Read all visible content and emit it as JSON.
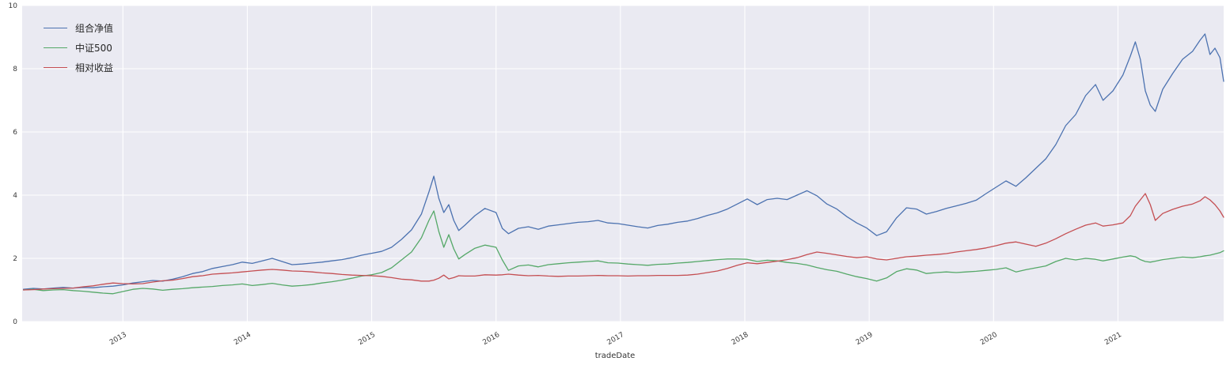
{
  "figure": {
    "background": "#ffffff",
    "plot_background": "#eaeaf2",
    "grid_color": "#ffffff",
    "tick_color": "#3b3b3b"
  },
  "chart_data": {
    "type": "line",
    "title": "",
    "xlabel": "tradeDate",
    "ylabel": "",
    "grid": true,
    "legend_position": "upper-left",
    "xlim": [
      2012.19,
      2021.85
    ],
    "ylim": [
      0,
      10
    ],
    "x_ticks": [
      "2013",
      "2014",
      "2015",
      "2016",
      "2017",
      "2018",
      "2019",
      "2020",
      "2021"
    ],
    "x_tick_values": [
      2013,
      2014,
      2015,
      2016,
      2017,
      2018,
      2019,
      2020,
      2021
    ],
    "y_ticks": [
      0,
      2,
      4,
      6,
      8,
      10
    ],
    "x": [
      2012.2,
      2012.28,
      2012.36,
      2012.44,
      2012.52,
      2012.6,
      2012.68,
      2012.76,
      2012.84,
      2012.92,
      2013.0,
      2013.08,
      2013.16,
      2013.24,
      2013.32,
      2013.4,
      2013.48,
      2013.56,
      2013.64,
      2013.72,
      2013.8,
      2013.88,
      2013.96,
      2014.04,
      2014.12,
      2014.2,
      2014.28,
      2014.36,
      2014.44,
      2014.52,
      2014.6,
      2014.68,
      2014.76,
      2014.84,
      2014.92,
      2015.0,
      2015.08,
      2015.16,
      2015.24,
      2015.32,
      2015.4,
      2015.46,
      2015.5,
      2015.54,
      2015.58,
      2015.62,
      2015.66,
      2015.7,
      2015.75,
      2015.83,
      2015.91,
      2016.0,
      2016.05,
      2016.1,
      2016.18,
      2016.26,
      2016.34,
      2016.42,
      2016.5,
      2016.58,
      2016.66,
      2016.74,
      2016.82,
      2016.9,
      2016.98,
      2017.06,
      2017.14,
      2017.22,
      2017.3,
      2017.38,
      2017.46,
      2017.54,
      2017.62,
      2017.7,
      2017.78,
      2017.86,
      2017.94,
      2018.02,
      2018.1,
      2018.18,
      2018.26,
      2018.34,
      2018.42,
      2018.5,
      2018.58,
      2018.66,
      2018.74,
      2018.82,
      2018.9,
      2018.98,
      2019.06,
      2019.14,
      2019.22,
      2019.3,
      2019.38,
      2019.46,
      2019.54,
      2019.62,
      2019.7,
      2019.78,
      2019.86,
      2019.94,
      2020.02,
      2020.1,
      2020.18,
      2020.26,
      2020.34,
      2020.42,
      2020.5,
      2020.58,
      2020.66,
      2020.74,
      2020.82,
      2020.88,
      2020.96,
      2021.04,
      2021.1,
      2021.14,
      2021.18,
      2021.22,
      2021.26,
      2021.3,
      2021.36,
      2021.44,
      2021.52,
      2021.6,
      2021.66,
      2021.7,
      2021.74,
      2021.78,
      2021.82,
      2021.85
    ],
    "series": [
      {
        "name": "组合净值",
        "color": "#4c72b0",
        "values": [
          1.02,
          1.05,
          1.03,
          1.06,
          1.08,
          1.06,
          1.08,
          1.07,
          1.1,
          1.12,
          1.16,
          1.22,
          1.26,
          1.3,
          1.28,
          1.34,
          1.42,
          1.52,
          1.58,
          1.68,
          1.74,
          1.8,
          1.88,
          1.84,
          1.92,
          2.0,
          1.9,
          1.8,
          1.82,
          1.85,
          1.88,
          1.92,
          1.96,
          2.02,
          2.1,
          2.16,
          2.22,
          2.35,
          2.6,
          2.9,
          3.4,
          4.1,
          4.6,
          3.9,
          3.45,
          3.7,
          3.2,
          2.88,
          3.05,
          3.35,
          3.58,
          3.45,
          2.95,
          2.78,
          2.95,
          3.0,
          2.92,
          3.02,
          3.06,
          3.1,
          3.14,
          3.16,
          3.2,
          3.12,
          3.1,
          3.05,
          3.0,
          2.96,
          3.04,
          3.08,
          3.14,
          3.18,
          3.26,
          3.36,
          3.44,
          3.56,
          3.72,
          3.88,
          3.7,
          3.86,
          3.9,
          3.86,
          4.0,
          4.14,
          3.98,
          3.72,
          3.56,
          3.32,
          3.12,
          2.96,
          2.72,
          2.84,
          3.28,
          3.6,
          3.56,
          3.4,
          3.48,
          3.58,
          3.66,
          3.74,
          3.84,
          4.05,
          4.25,
          4.45,
          4.28,
          4.55,
          4.85,
          5.15,
          5.6,
          6.2,
          6.55,
          7.15,
          7.5,
          7.0,
          7.3,
          7.8,
          8.4,
          8.85,
          8.3,
          7.3,
          6.85,
          6.65,
          7.35,
          7.85,
          8.3,
          8.55,
          8.9,
          9.1,
          8.45,
          8.65,
          8.35,
          7.6
        ]
      },
      {
        "name": "中证500",
        "color": "#55a868",
        "values": [
          1.0,
          1.02,
          0.98,
          1.0,
          1.01,
          0.98,
          0.96,
          0.93,
          0.9,
          0.88,
          0.95,
          1.02,
          1.05,
          1.03,
          0.99,
          1.02,
          1.04,
          1.07,
          1.09,
          1.11,
          1.14,
          1.16,
          1.19,
          1.14,
          1.17,
          1.21,
          1.16,
          1.12,
          1.14,
          1.17,
          1.22,
          1.26,
          1.31,
          1.37,
          1.44,
          1.48,
          1.55,
          1.7,
          1.95,
          2.2,
          2.65,
          3.2,
          3.5,
          2.85,
          2.35,
          2.75,
          2.3,
          1.98,
          2.12,
          2.32,
          2.42,
          2.35,
          1.95,
          1.62,
          1.76,
          1.79,
          1.73,
          1.8,
          1.83,
          1.86,
          1.88,
          1.9,
          1.92,
          1.86,
          1.85,
          1.82,
          1.8,
          1.78,
          1.81,
          1.82,
          1.85,
          1.87,
          1.9,
          1.93,
          1.96,
          1.98,
          1.98,
          1.97,
          1.9,
          1.94,
          1.92,
          1.87,
          1.84,
          1.79,
          1.71,
          1.64,
          1.59,
          1.5,
          1.42,
          1.36,
          1.28,
          1.38,
          1.58,
          1.67,
          1.63,
          1.52,
          1.55,
          1.57,
          1.55,
          1.57,
          1.59,
          1.62,
          1.65,
          1.7,
          1.57,
          1.64,
          1.7,
          1.76,
          1.9,
          2.0,
          1.95,
          2.0,
          1.97,
          1.92,
          1.98,
          2.04,
          2.08,
          2.05,
          1.96,
          1.9,
          1.88,
          1.91,
          1.96,
          2.0,
          2.04,
          2.02,
          2.05,
          2.08,
          2.1,
          2.14,
          2.18,
          2.24
        ]
      },
      {
        "name": "相对收益",
        "color": "#c44e52",
        "values": [
          1.0,
          1.01,
          1.03,
          1.04,
          1.05,
          1.06,
          1.1,
          1.13,
          1.18,
          1.22,
          1.2,
          1.19,
          1.2,
          1.25,
          1.29,
          1.31,
          1.36,
          1.42,
          1.45,
          1.5,
          1.52,
          1.54,
          1.57,
          1.6,
          1.63,
          1.65,
          1.63,
          1.6,
          1.59,
          1.57,
          1.54,
          1.52,
          1.49,
          1.47,
          1.46,
          1.45,
          1.43,
          1.39,
          1.34,
          1.32,
          1.28,
          1.28,
          1.31,
          1.37,
          1.47,
          1.35,
          1.39,
          1.45,
          1.44,
          1.44,
          1.48,
          1.47,
          1.48,
          1.5,
          1.47,
          1.45,
          1.46,
          1.44,
          1.43,
          1.44,
          1.44,
          1.45,
          1.46,
          1.45,
          1.45,
          1.44,
          1.45,
          1.45,
          1.46,
          1.46,
          1.46,
          1.47,
          1.5,
          1.55,
          1.6,
          1.68,
          1.78,
          1.86,
          1.83,
          1.87,
          1.91,
          1.96,
          2.02,
          2.12,
          2.2,
          2.16,
          2.11,
          2.06,
          2.02,
          2.05,
          1.98,
          1.95,
          2.0,
          2.05,
          2.07,
          2.1,
          2.12,
          2.15,
          2.2,
          2.24,
          2.28,
          2.33,
          2.4,
          2.48,
          2.52,
          2.45,
          2.38,
          2.48,
          2.62,
          2.78,
          2.92,
          3.05,
          3.12,
          3.02,
          3.06,
          3.12,
          3.35,
          3.65,
          3.85,
          4.05,
          3.7,
          3.2,
          3.42,
          3.55,
          3.65,
          3.72,
          3.82,
          3.95,
          3.85,
          3.7,
          3.5,
          3.3
        ]
      }
    ]
  }
}
